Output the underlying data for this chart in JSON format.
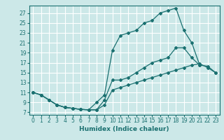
{
  "xlabel": "Humidex (Indice chaleur)",
  "bg_color": "#cce8e8",
  "grid_color": "#ffffff",
  "line_color": "#1a7070",
  "xlim": [
    -0.5,
    23.5
  ],
  "ylim": [
    6.5,
    28.5
  ],
  "xticks": [
    0,
    1,
    2,
    3,
    4,
    5,
    6,
    7,
    8,
    9,
    10,
    11,
    12,
    13,
    14,
    15,
    16,
    17,
    18,
    19,
    20,
    21,
    22,
    23
  ],
  "yticks": [
    7,
    9,
    11,
    13,
    15,
    17,
    19,
    21,
    23,
    25,
    27
  ],
  "line1_x": [
    0,
    1,
    2,
    3,
    4,
    5,
    6,
    7,
    8,
    9,
    10,
    11,
    12,
    13,
    14,
    15,
    16,
    17,
    18,
    19,
    20,
    21,
    22,
    23
  ],
  "line1_y": [
    11,
    10.5,
    9.5,
    8.5,
    8.0,
    7.8,
    7.6,
    7.5,
    7.5,
    8.5,
    11.5,
    12.0,
    12.5,
    13.0,
    13.5,
    14.0,
    14.5,
    15.0,
    15.5,
    16.0,
    16.5,
    16.8,
    16.0,
    15.0
  ],
  "line2_x": [
    0,
    1,
    2,
    3,
    4,
    5,
    6,
    7,
    8,
    9,
    10,
    11,
    12,
    13,
    14,
    15,
    16,
    17,
    18,
    19,
    20,
    21,
    22,
    23
  ],
  "line2_y": [
    11,
    10.5,
    9.5,
    8.5,
    8.0,
    7.8,
    7.6,
    7.5,
    7.5,
    9.5,
    13.5,
    13.5,
    14.0,
    15.0,
    16.0,
    17.0,
    17.5,
    18.0,
    20.0,
    20.0,
    18.0,
    16.5,
    16.3,
    15.0
  ],
  "line3_x": [
    0,
    1,
    2,
    3,
    4,
    5,
    6,
    7,
    8,
    9,
    10,
    11,
    12,
    13,
    14,
    15,
    16,
    17,
    18,
    19,
    20,
    21
  ],
  "line3_y": [
    11,
    10.5,
    9.5,
    8.5,
    8.0,
    7.8,
    7.6,
    7.5,
    9.0,
    10.5,
    19.5,
    22.5,
    23.0,
    23.5,
    25.0,
    25.5,
    27.0,
    27.5,
    28.0,
    23.5,
    21.0,
    16.5
  ]
}
